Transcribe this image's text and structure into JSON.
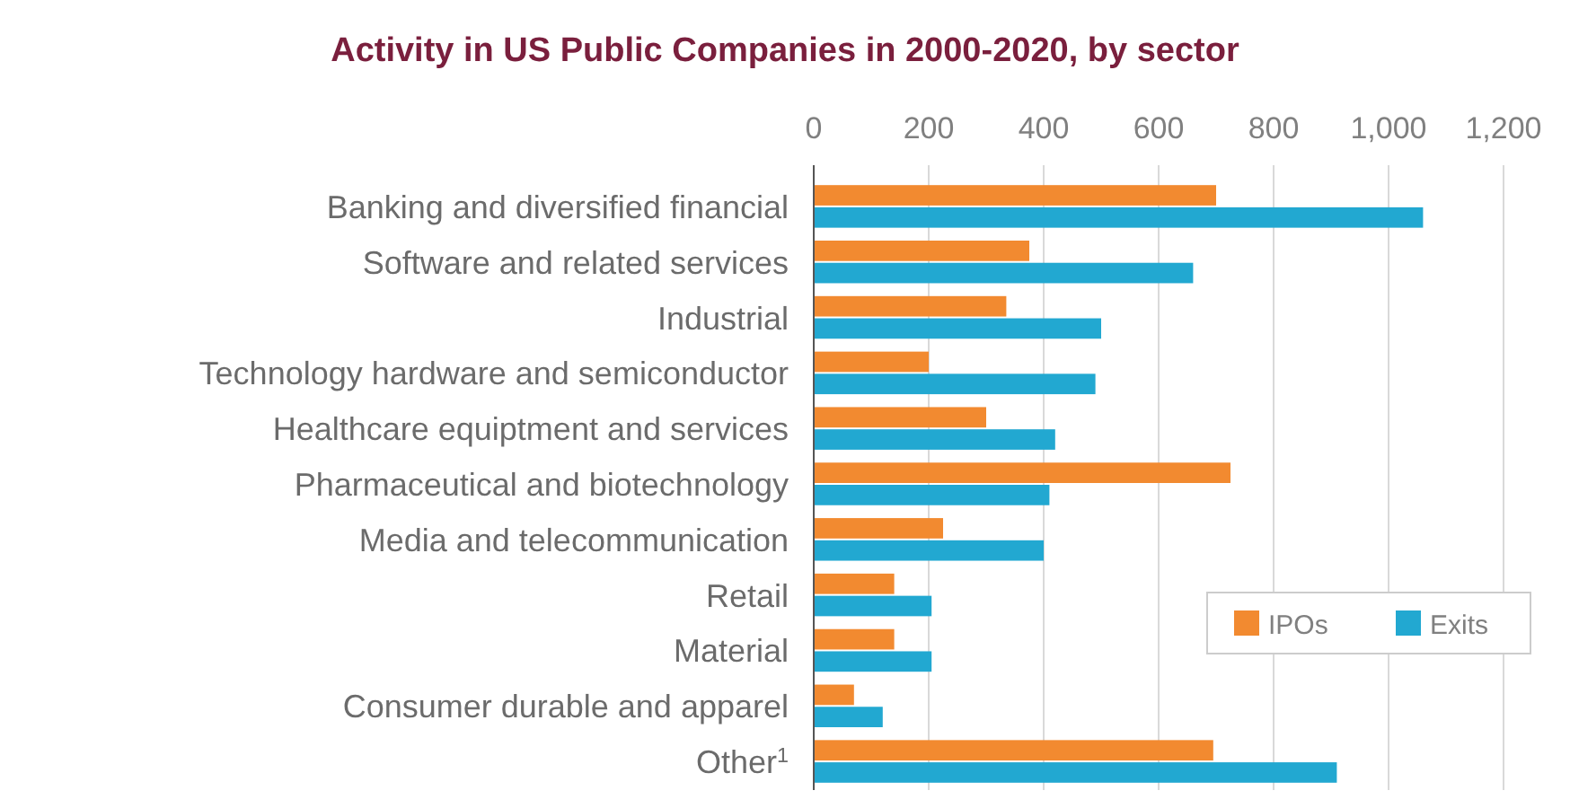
{
  "chart_data": {
    "type": "bar",
    "orientation": "horizontal",
    "title": "Activity in US Public Companies in 2000-2020, by sector",
    "categories": [
      "Banking and diversified financial",
      "Software and related services",
      "Industrial",
      "Technology hardware and semiconductor",
      "Healthcare equiptment and services",
      "Pharmaceutical and biotechnology",
      "Media and telecommunication",
      "Retail",
      "Material",
      "Consumer durable and apparel",
      "Other$^{1}$"
    ],
    "series": [
      {
        "name": "IPOs",
        "color": "#f28a30",
        "values": [
          700,
          375,
          335,
          200,
          300,
          725,
          225,
          140,
          140,
          70,
          695
        ]
      },
      {
        "name": "Exits",
        "color": "#22a8d1",
        "values": [
          1060,
          660,
          500,
          490,
          420,
          410,
          400,
          205,
          205,
          120,
          910
        ]
      }
    ],
    "xlim": [
      0,
      1200
    ],
    "xticks": [
      0,
      200,
      400,
      600,
      800,
      {
        "value": 1000,
        "label": "1,000"
      },
      {
        "value": 1200,
        "label": "1,200"
      }
    ],
    "grid": "x",
    "legend": "bottom right"
  }
}
